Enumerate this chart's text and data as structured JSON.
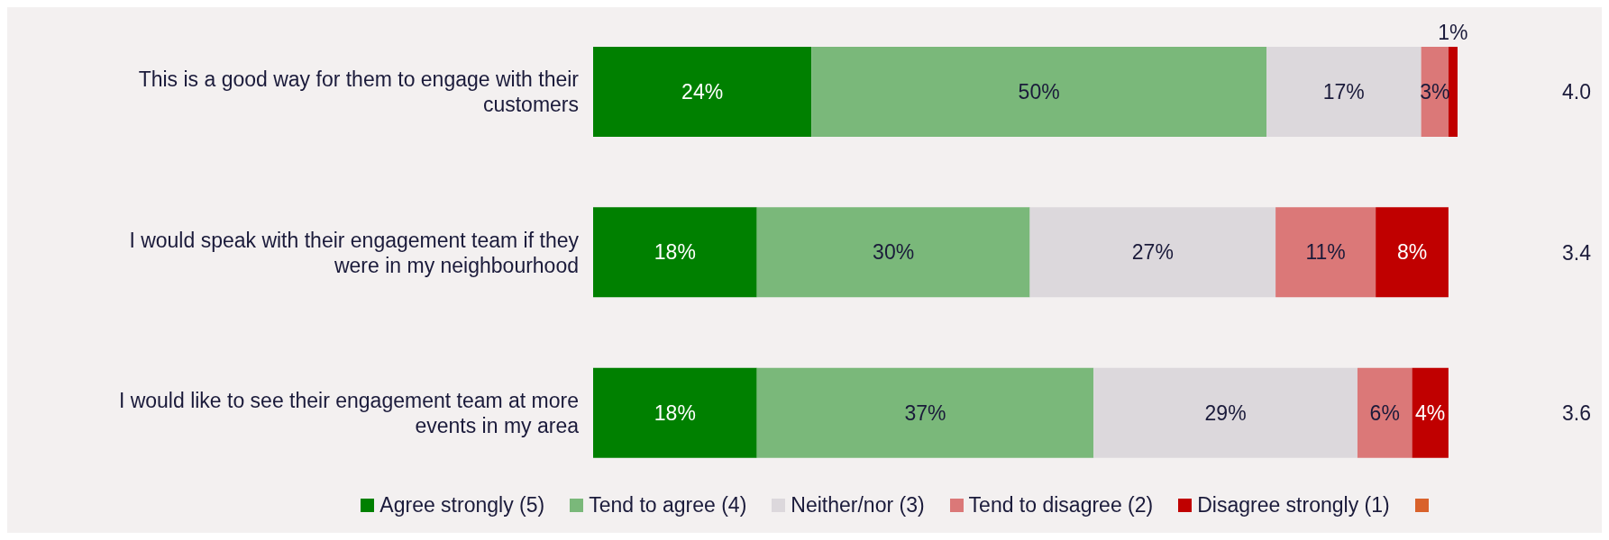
{
  "chart_data": {
    "type": "bar",
    "orientation": "horizontal",
    "stacked": true,
    "categories": [
      "This is a good way for them to engage with their customers",
      "I would speak with their engagement team if they were in my neighbourhood",
      "I would like to see their engagement team at more events in my area"
    ],
    "series": [
      {
        "name": "Agree strongly (5)",
        "color": "#008000",
        "values": [
          24,
          18,
          18
        ],
        "value_labels": [
          "24%",
          "18%",
          "18%"
        ]
      },
      {
        "name": "Tend to agree (4)",
        "color": "#7ab87a",
        "values": [
          50,
          30,
          37
        ],
        "value_labels": [
          "50%",
          "30%",
          "37%"
        ]
      },
      {
        "name": "Neither/nor (3)",
        "color": "#dcd8dc",
        "values": [
          17,
          27,
          29
        ],
        "value_labels": [
          "17%",
          "27%",
          "29%"
        ]
      },
      {
        "name": "Tend to disagree (2)",
        "color": "#db7878",
        "values": [
          3,
          11,
          6
        ],
        "value_labels": [
          "3%",
          "11%",
          "6%"
        ]
      },
      {
        "name": "Disagree strongly (1)",
        "color": "#c00000",
        "values": [
          1,
          8,
          4
        ],
        "value_labels": [
          "1%",
          "8%",
          "4%"
        ]
      },
      {
        "color": "#d9622b",
        "values": [
          null,
          null,
          null
        ]
      }
    ],
    "annotations": [
      "4.0",
      "3.4",
      "3.6"
    ],
    "legend": "bottom"
  }
}
